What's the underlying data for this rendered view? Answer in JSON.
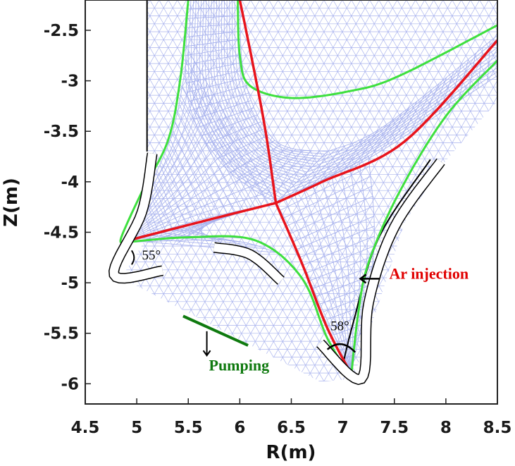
{
  "chart_data": {
    "type": "mesh-plot",
    "xlabel": "R(m)",
    "ylabel": "Z(m)",
    "xlim": [
      4.5,
      8.5
    ],
    "ylim": [
      -6.2,
      -2.2
    ],
    "xticks": [
      4.5,
      5,
      5.5,
      6,
      6.5,
      7,
      7.5,
      8,
      8.5
    ],
    "xtick_labels": [
      "4.5",
      "5",
      "5.5",
      "6",
      "6.5",
      "7",
      "7.5",
      "8",
      "8.5"
    ],
    "yticks": [
      -2.5,
      -3,
      -3.5,
      -4,
      -4.5,
      -5,
      -5.5,
      -6
    ],
    "ytick_labels": [
      "-2.5",
      "-3",
      "-3.5",
      "-4",
      "-4.5",
      "-5",
      "-5.5",
      "-6"
    ],
    "colors": {
      "mesh": "#aab4ee",
      "separatrix": "#e8141c",
      "boundary": "#3ee03e",
      "wall": "#000000",
      "pump": "#0f7a0f"
    },
    "separatrix": {
      "x_point": [
        6.35,
        -4.21
      ],
      "upper_leg": [
        [
          6.0,
          -2.2
        ],
        [
          6.12,
          -2.8
        ],
        [
          6.25,
          -3.5
        ],
        [
          6.35,
          -4.21
        ]
      ],
      "inner_leg": [
        [
          6.35,
          -4.21
        ],
        [
          5.8,
          -4.35
        ],
        [
          5.3,
          -4.48
        ],
        [
          4.92,
          -4.58
        ]
      ],
      "outer_leg": [
        [
          6.35,
          -4.21
        ],
        [
          6.8,
          -4.0
        ],
        [
          7.6,
          -3.6
        ],
        [
          8.5,
          -2.6
        ]
      ],
      "lower_leg": [
        [
          6.35,
          -4.21
        ],
        [
          6.6,
          -4.8
        ],
        [
          6.85,
          -5.45
        ],
        [
          7.08,
          -5.9
        ]
      ]
    },
    "annotations": {
      "ar_injection": {
        "label": "Ar injection",
        "position": [
          7.45,
          -4.96
        ]
      },
      "pumping": {
        "label": "Pumping",
        "position": [
          5.7,
          -5.87
        ],
        "line": [
          [
            5.45,
            -5.33
          ],
          [
            6.08,
            -5.62
          ]
        ]
      },
      "inner_angle": {
        "label": "55°",
        "position": [
          5.05,
          -4.77
        ]
      },
      "outer_angle": {
        "label": "58°",
        "position": [
          6.88,
          -5.47
        ]
      }
    }
  }
}
